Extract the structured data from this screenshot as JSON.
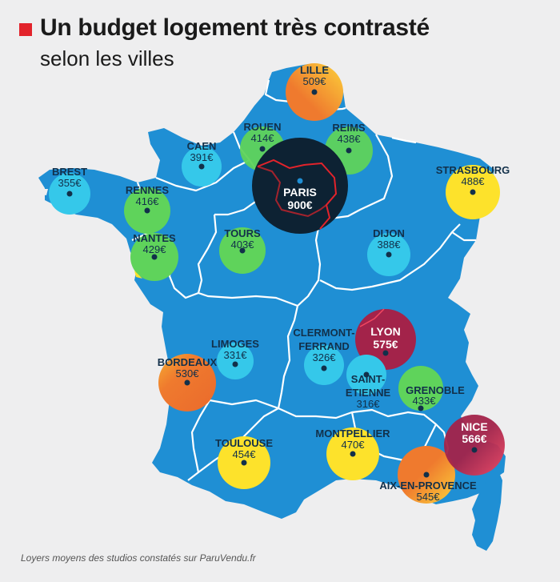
{
  "title": {
    "line1": "Un budget logement très contrasté",
    "line2": "selon les villes"
  },
  "footer": "Loyers moyens des studios constatés sur ParuVendu.fr",
  "colors": {
    "background": "#eeeeef",
    "map_fill": "#1f8fd4",
    "region_border": "#ffffff",
    "paris_outline": "#e2232b",
    "cyan": "#35c8ea",
    "green": "#5fd35b",
    "yellow": "#fde22b",
    "orange": "#ef7a2e",
    "dark": "#0d2233",
    "crimson": "#a3234a"
  },
  "cities": [
    {
      "id": "lille",
      "name": "LILLE",
      "price": "509€",
      "color": "orange-yellow",
      "size": "medium"
    },
    {
      "id": "rouen",
      "name": "ROUEN",
      "price": "414€",
      "color": "green",
      "size": "small"
    },
    {
      "id": "reims",
      "name": "REIMS",
      "price": "438€",
      "color": "green",
      "size": "small"
    },
    {
      "id": "caen",
      "name": "CAEN",
      "price": "391€",
      "color": "cyan",
      "size": "small"
    },
    {
      "id": "brest",
      "name": "BREST",
      "price": "355€",
      "color": "cyan",
      "size": "small"
    },
    {
      "id": "paris",
      "name": "PARIS",
      "price": "900€",
      "color": "dark",
      "size": "large"
    },
    {
      "id": "strasbourg",
      "name": "STRASBOURG",
      "price": "488€",
      "color": "yellow",
      "size": "medium"
    },
    {
      "id": "rennes",
      "name": "RENNES",
      "price": "416€",
      "color": "green",
      "size": "small"
    },
    {
      "id": "nantes",
      "name": "NANTES",
      "price": "429€",
      "color": "green",
      "size": "small"
    },
    {
      "id": "tours",
      "name": "TOURS",
      "price": "403€",
      "color": "green",
      "size": "small"
    },
    {
      "id": "dijon",
      "name": "DIJON",
      "price": "388€",
      "color": "cyan",
      "size": "small"
    },
    {
      "id": "lyon",
      "name": "LYON",
      "price": "575€",
      "color": "crimson",
      "size": "medium"
    },
    {
      "id": "clermont",
      "name": "CLERMONT-",
      "name2": "FERRAND",
      "price": "326€",
      "color": "cyan",
      "size": "small"
    },
    {
      "id": "limoges",
      "name": "LIMOGES",
      "price": "331€",
      "color": "cyan",
      "size": "small"
    },
    {
      "id": "bordeaux",
      "name": "BORDEAUX",
      "price": "530€",
      "color": "orange",
      "size": "medium"
    },
    {
      "id": "saint-etienne",
      "name": "SAINT-",
      "name2": "ETIENNE",
      "price": "316€",
      "color": "cyan",
      "size": "small"
    },
    {
      "id": "grenoble",
      "name": "GRENOBLE",
      "price": "433€",
      "color": "green",
      "size": "small"
    },
    {
      "id": "toulouse",
      "name": "TOULOUSE",
      "price": "454€",
      "color": "yellow",
      "size": "medium"
    },
    {
      "id": "montpellier",
      "name": "MONTPELLIER",
      "price": "470€",
      "color": "yellow",
      "size": "medium"
    },
    {
      "id": "nice",
      "name": "NICE",
      "price": "566€",
      "color": "crimson-red",
      "size": "medium"
    },
    {
      "id": "aix",
      "name": "AIX-EN-PROVENCE",
      "price": "545€",
      "color": "orange-yellow",
      "size": "medium"
    }
  ]
}
